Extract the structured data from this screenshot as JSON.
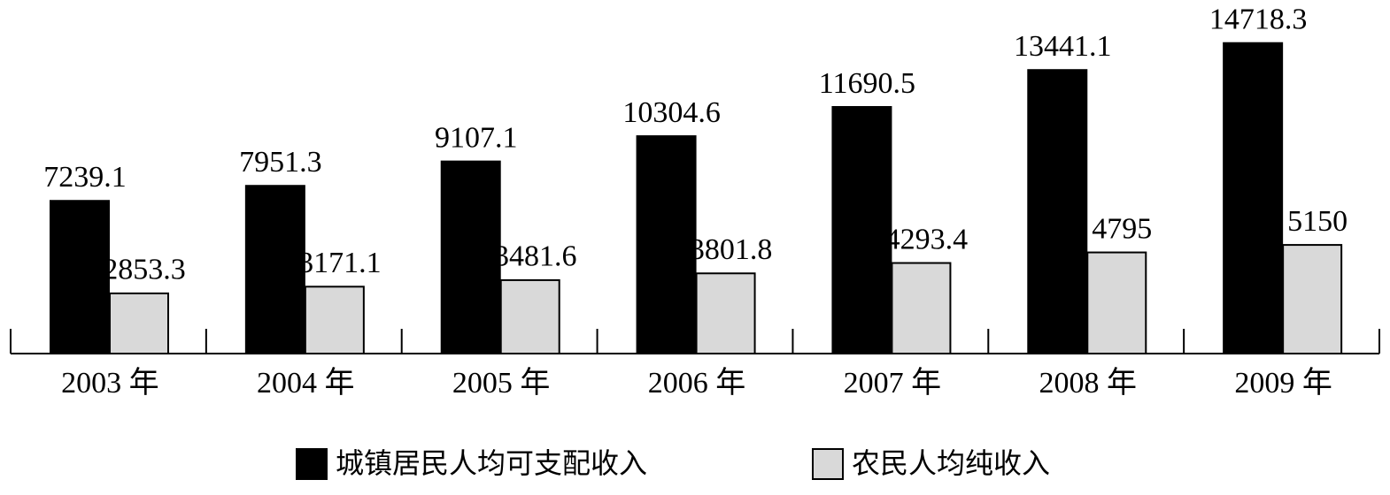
{
  "chart_data": {
    "type": "bar",
    "categories": [
      "2003 年",
      "2004 年",
      "2005 年",
      "2006 年",
      "2007 年",
      "2008 年",
      "2009 年"
    ],
    "series": [
      {
        "name": "城镇居民人均可支配收入",
        "color": "#000000",
        "values": [
          7239.1,
          7951.3,
          9107.1,
          10304.6,
          11690.5,
          13441.1,
          14718.3
        ]
      },
      {
        "name": "农民人均纯收入",
        "color": "#d9d9d9",
        "values": [
          2853.3,
          3171.1,
          3481.6,
          3801.8,
          4293.4,
          4795,
          5150
        ]
      }
    ],
    "ylim": [
      0,
      15000
    ]
  }
}
